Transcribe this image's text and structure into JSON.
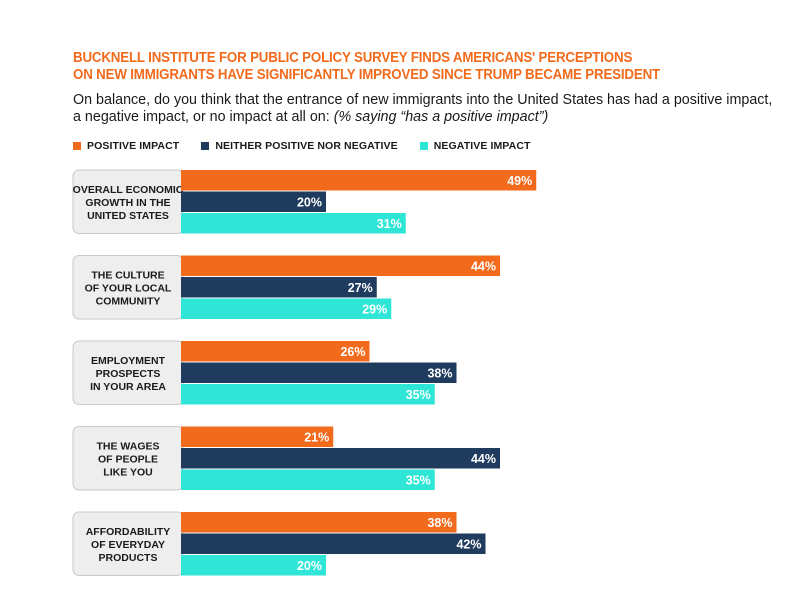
{
  "chart_data": {
    "type": "bar",
    "orientation": "horizontal",
    "title_lines": [
      "BUCKNELL INSTITUTE FOR PUBLIC POLICY SURVEY FINDS AMERICANS' PERCEPTIONS",
      "ON NEW IMMIGRANTS HAVE SIGNIFICANTLY IMPROVED SINCE TRUMP BECAME PRESIDENT"
    ],
    "subtitle": "On balance, do you think that the entrance of new immigrants into the United States has had a positive impact, a negative impact, or no impact at all on:",
    "subtitle_note": "(% saying “has a positive impact”)",
    "categories": [
      [
        "OVERALL ECONOMIC",
        "GROWTH IN THE",
        "UNITED STATES"
      ],
      [
        "THE CULTURE",
        "OF YOUR LOCAL",
        "COMMUNITY"
      ],
      [
        "EMPLOYMENT",
        "PROSPECTS",
        "IN YOUR AREA"
      ],
      [
        "THE WAGES",
        "OF PEOPLE",
        "LIKE YOU"
      ],
      [
        "AFFORDABILITY",
        "OF EVERYDAY",
        "PRODUCTS"
      ]
    ],
    "series": [
      {
        "name": "POSITIVE IMPACT",
        "color": "#f26b1d",
        "values": [
          49,
          44,
          26,
          21,
          38
        ]
      },
      {
        "name": "NEITHER POSITIVE NOR NEGATIVE",
        "color": "#1f3c5e",
        "values": [
          20,
          27,
          38,
          44,
          42
        ]
      },
      {
        "name": "NEGATIVE IMPACT",
        "color": "#2ee5d6",
        "values": [
          31,
          29,
          35,
          35,
          20
        ]
      }
    ],
    "value_suffix": "%",
    "xlim": [
      0,
      100
    ],
    "legend_position": "top",
    "grid": false
  }
}
